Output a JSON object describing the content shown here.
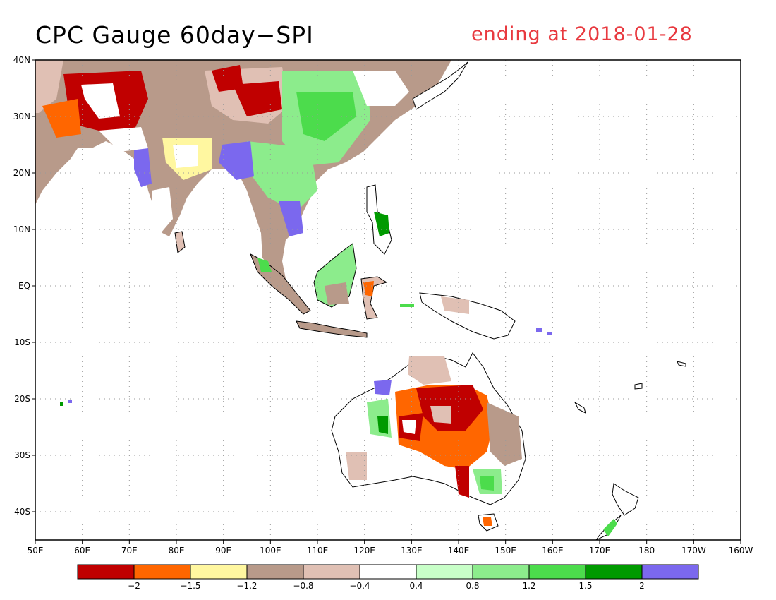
{
  "title": "CPC Gauge 60day−SPI",
  "date_label": "ending at 2018-01-28",
  "map": {
    "lon_ticks": [
      "50E",
      "60E",
      "70E",
      "80E",
      "90E",
      "100E",
      "110E",
      "120E",
      "130E",
      "140E",
      "150E",
      "160E",
      "170E",
      "180",
      "170W",
      "160W"
    ],
    "lat_ticks": [
      "40N",
      "30N",
      "20N",
      "10N",
      "EQ",
      "10S",
      "20S",
      "30S",
      "40S"
    ]
  },
  "legend": {
    "colors": [
      "#c00000",
      "#ff6600",
      "#fff7a0",
      "#b89a8a",
      "#e0c0b4",
      "#ffffff",
      "#c8ffc8",
      "#8cec8c",
      "#4cdc4c",
      "#009a00",
      "#7b68ee"
    ],
    "labels": [
      "−2",
      "−1.5",
      "−1.2",
      "−0.8",
      "−0.4",
      "0.4",
      "0.8",
      "1.2",
      "1.5",
      "2"
    ]
  }
}
